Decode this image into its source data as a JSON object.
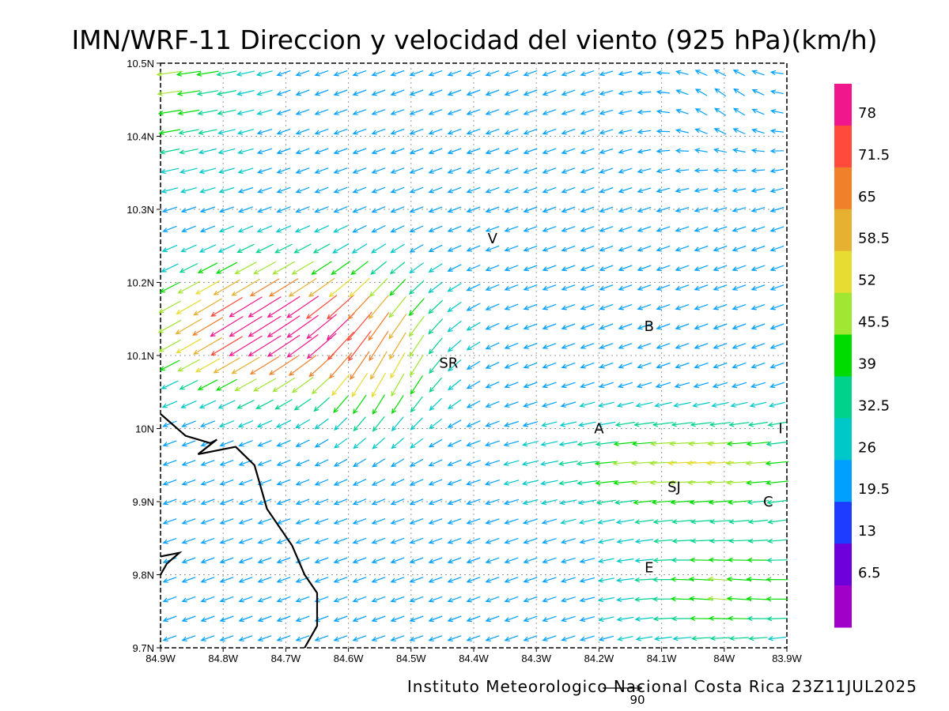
{
  "title": "IMN/WRF-11 Direccion y velocidad del viento (925 hPa)(km/h)",
  "footer": "Instituto Meteorologico Nacional Costa Rica 23Z11JUL2025",
  "reference_vector": {
    "label": "90",
    "magnitude": 90
  },
  "axes": {
    "x_labels": [
      "84.9W",
      "84.8W",
      "84.7W",
      "84.6W",
      "84.5W",
      "84.4W",
      "84.3W",
      "84.2W",
      "84.1W",
      "84W",
      "83.9W"
    ],
    "y_labels": [
      "10.5N",
      "10.4N",
      "10.3N",
      "10.2N",
      "10.1N",
      "10N",
      "9.9N",
      "9.8N",
      "9.7N"
    ],
    "lon_range": [
      -84.9,
      -83.9
    ],
    "lat_range": [
      9.7,
      10.5
    ],
    "grid": true
  },
  "colorbar": {
    "labels": [
      "78",
      "71.5",
      "65",
      "58.5",
      "52",
      "45.5",
      "39",
      "32.5",
      "26",
      "19.5",
      "13",
      "6.5"
    ],
    "colors": [
      "#f0168c",
      "#ff4a3c",
      "#f0802a",
      "#e6b031",
      "#e6dc32",
      "#a0e632",
      "#00dc00",
      "#00d28c",
      "#00c8c8",
      "#00a0ff",
      "#1e3cff",
      "#6e00dc",
      "#a000c8"
    ]
  },
  "places": [
    {
      "label": "V",
      "lon": -84.37,
      "lat": 10.26
    },
    {
      "label": "SR",
      "lon": -84.44,
      "lat": 10.09
    },
    {
      "label": "B",
      "lon": -84.12,
      "lat": 10.14
    },
    {
      "label": "A",
      "lon": -84.2,
      "lat": 10.0
    },
    {
      "label": "I",
      "lon": -83.91,
      "lat": 10.0
    },
    {
      "label": "SJ",
      "lon": -84.08,
      "lat": 9.92
    },
    {
      "label": "C",
      "lon": -83.93,
      "lat": 9.9
    },
    {
      "label": "E",
      "lon": -84.12,
      "lat": 9.81
    }
  ],
  "coastline": [
    [
      [
        -84.9,
        10.02
      ],
      [
        -84.86,
        9.99
      ],
      [
        -84.82,
        9.98
      ],
      [
        -84.81,
        9.985
      ],
      [
        -84.84,
        9.965
      ],
      [
        -84.78,
        9.975
      ],
      [
        -84.75,
        9.95
      ],
      [
        -84.73,
        9.89
      ],
      [
        -84.69,
        9.84
      ],
      [
        -84.67,
        9.8
      ],
      [
        -84.65,
        9.775
      ],
      [
        -84.65,
        9.73
      ],
      [
        -84.67,
        9.7
      ]
    ],
    [
      [
        -84.9,
        9.8
      ],
      [
        -84.89,
        9.815
      ],
      [
        -84.87,
        9.83
      ],
      [
        -84.9,
        9.825
      ]
    ]
  ]
}
